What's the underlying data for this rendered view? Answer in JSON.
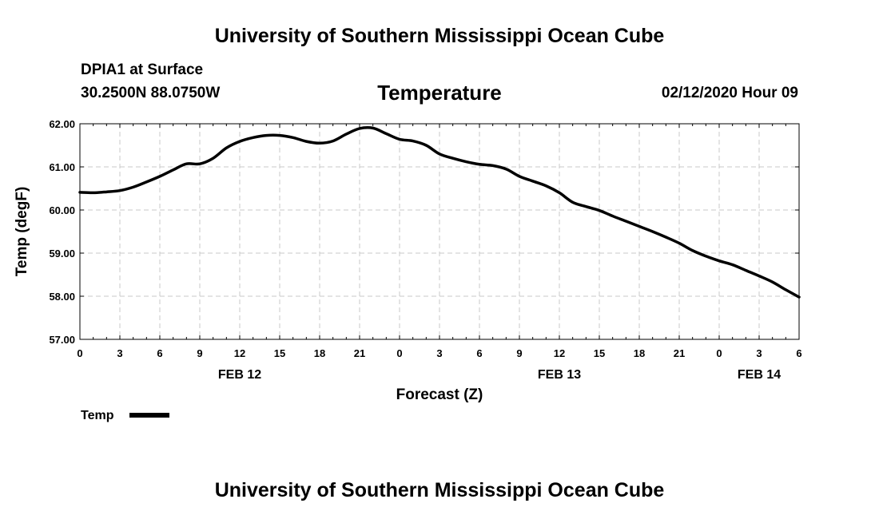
{
  "header": {
    "title": "University of Southern Mississippi Ocean Cube",
    "station": "DPIA1 at Surface",
    "coords": "30.2500N 88.0750W",
    "datetime": "02/12/2020 Hour 09"
  },
  "footer": {
    "title": "University of Southern Mississippi Ocean Cube"
  },
  "colors": {
    "line": "#000000",
    "grid": "#c8c8c8",
    "axis": "#000000"
  },
  "chart_data": {
    "type": "line",
    "title": "Temperature",
    "xlabel": "Forecast (Z)",
    "ylabel": "Temp (degF)",
    "xlim": [
      0,
      54
    ],
    "ylim": [
      57,
      62
    ],
    "grid": true,
    "legend_position": "bottom-left",
    "x_ticks": [
      0,
      3,
      6,
      9,
      12,
      15,
      18,
      21,
      24,
      27,
      30,
      33,
      36,
      39,
      42,
      45,
      48,
      51,
      54
    ],
    "x_tick_labels": [
      "0",
      "3",
      "6",
      "9",
      "12",
      "15",
      "18",
      "21",
      "0",
      "3",
      "6",
      "9",
      "12",
      "15",
      "18",
      "21",
      "0",
      "3",
      "6"
    ],
    "y_ticks": [
      57,
      58,
      59,
      60,
      61,
      62
    ],
    "y_tick_labels": [
      "57.00",
      "58.00",
      "59.00",
      "60.00",
      "61.00",
      "62.00"
    ],
    "date_labels": [
      {
        "x": 12,
        "label": "FEB 12"
      },
      {
        "x": 36,
        "label": "FEB 13"
      },
      {
        "x": 51,
        "label": "FEB 14"
      }
    ],
    "series": [
      {
        "name": "Temp",
        "x": [
          0,
          1,
          2,
          3,
          4,
          5,
          6,
          7,
          8,
          9,
          10,
          11,
          12,
          13,
          14,
          15,
          16,
          17,
          18,
          19,
          20,
          21,
          22,
          23,
          24,
          25,
          26,
          27,
          28,
          29,
          30,
          31,
          32,
          33,
          34,
          35,
          36,
          37,
          38,
          39,
          40,
          41,
          42,
          43,
          44,
          45,
          46,
          47,
          48,
          49,
          50,
          51,
          52,
          53,
          54
        ],
        "values": [
          60.41,
          60.4,
          60.42,
          60.45,
          60.53,
          60.65,
          60.78,
          60.93,
          61.07,
          61.07,
          61.2,
          61.44,
          61.59,
          61.68,
          61.73,
          61.73,
          61.68,
          61.59,
          61.55,
          61.6,
          61.76,
          61.89,
          61.9,
          61.77,
          61.64,
          61.6,
          61.5,
          61.3,
          61.2,
          61.12,
          61.06,
          61.03,
          60.95,
          60.78,
          60.67,
          60.56,
          60.4,
          60.18,
          60.08,
          59.99,
          59.86,
          59.74,
          59.62,
          59.5,
          59.37,
          59.23,
          59.06,
          58.93,
          58.82,
          58.73,
          58.6,
          58.47,
          58.33,
          58.15,
          57.98
        ]
      }
    ]
  }
}
